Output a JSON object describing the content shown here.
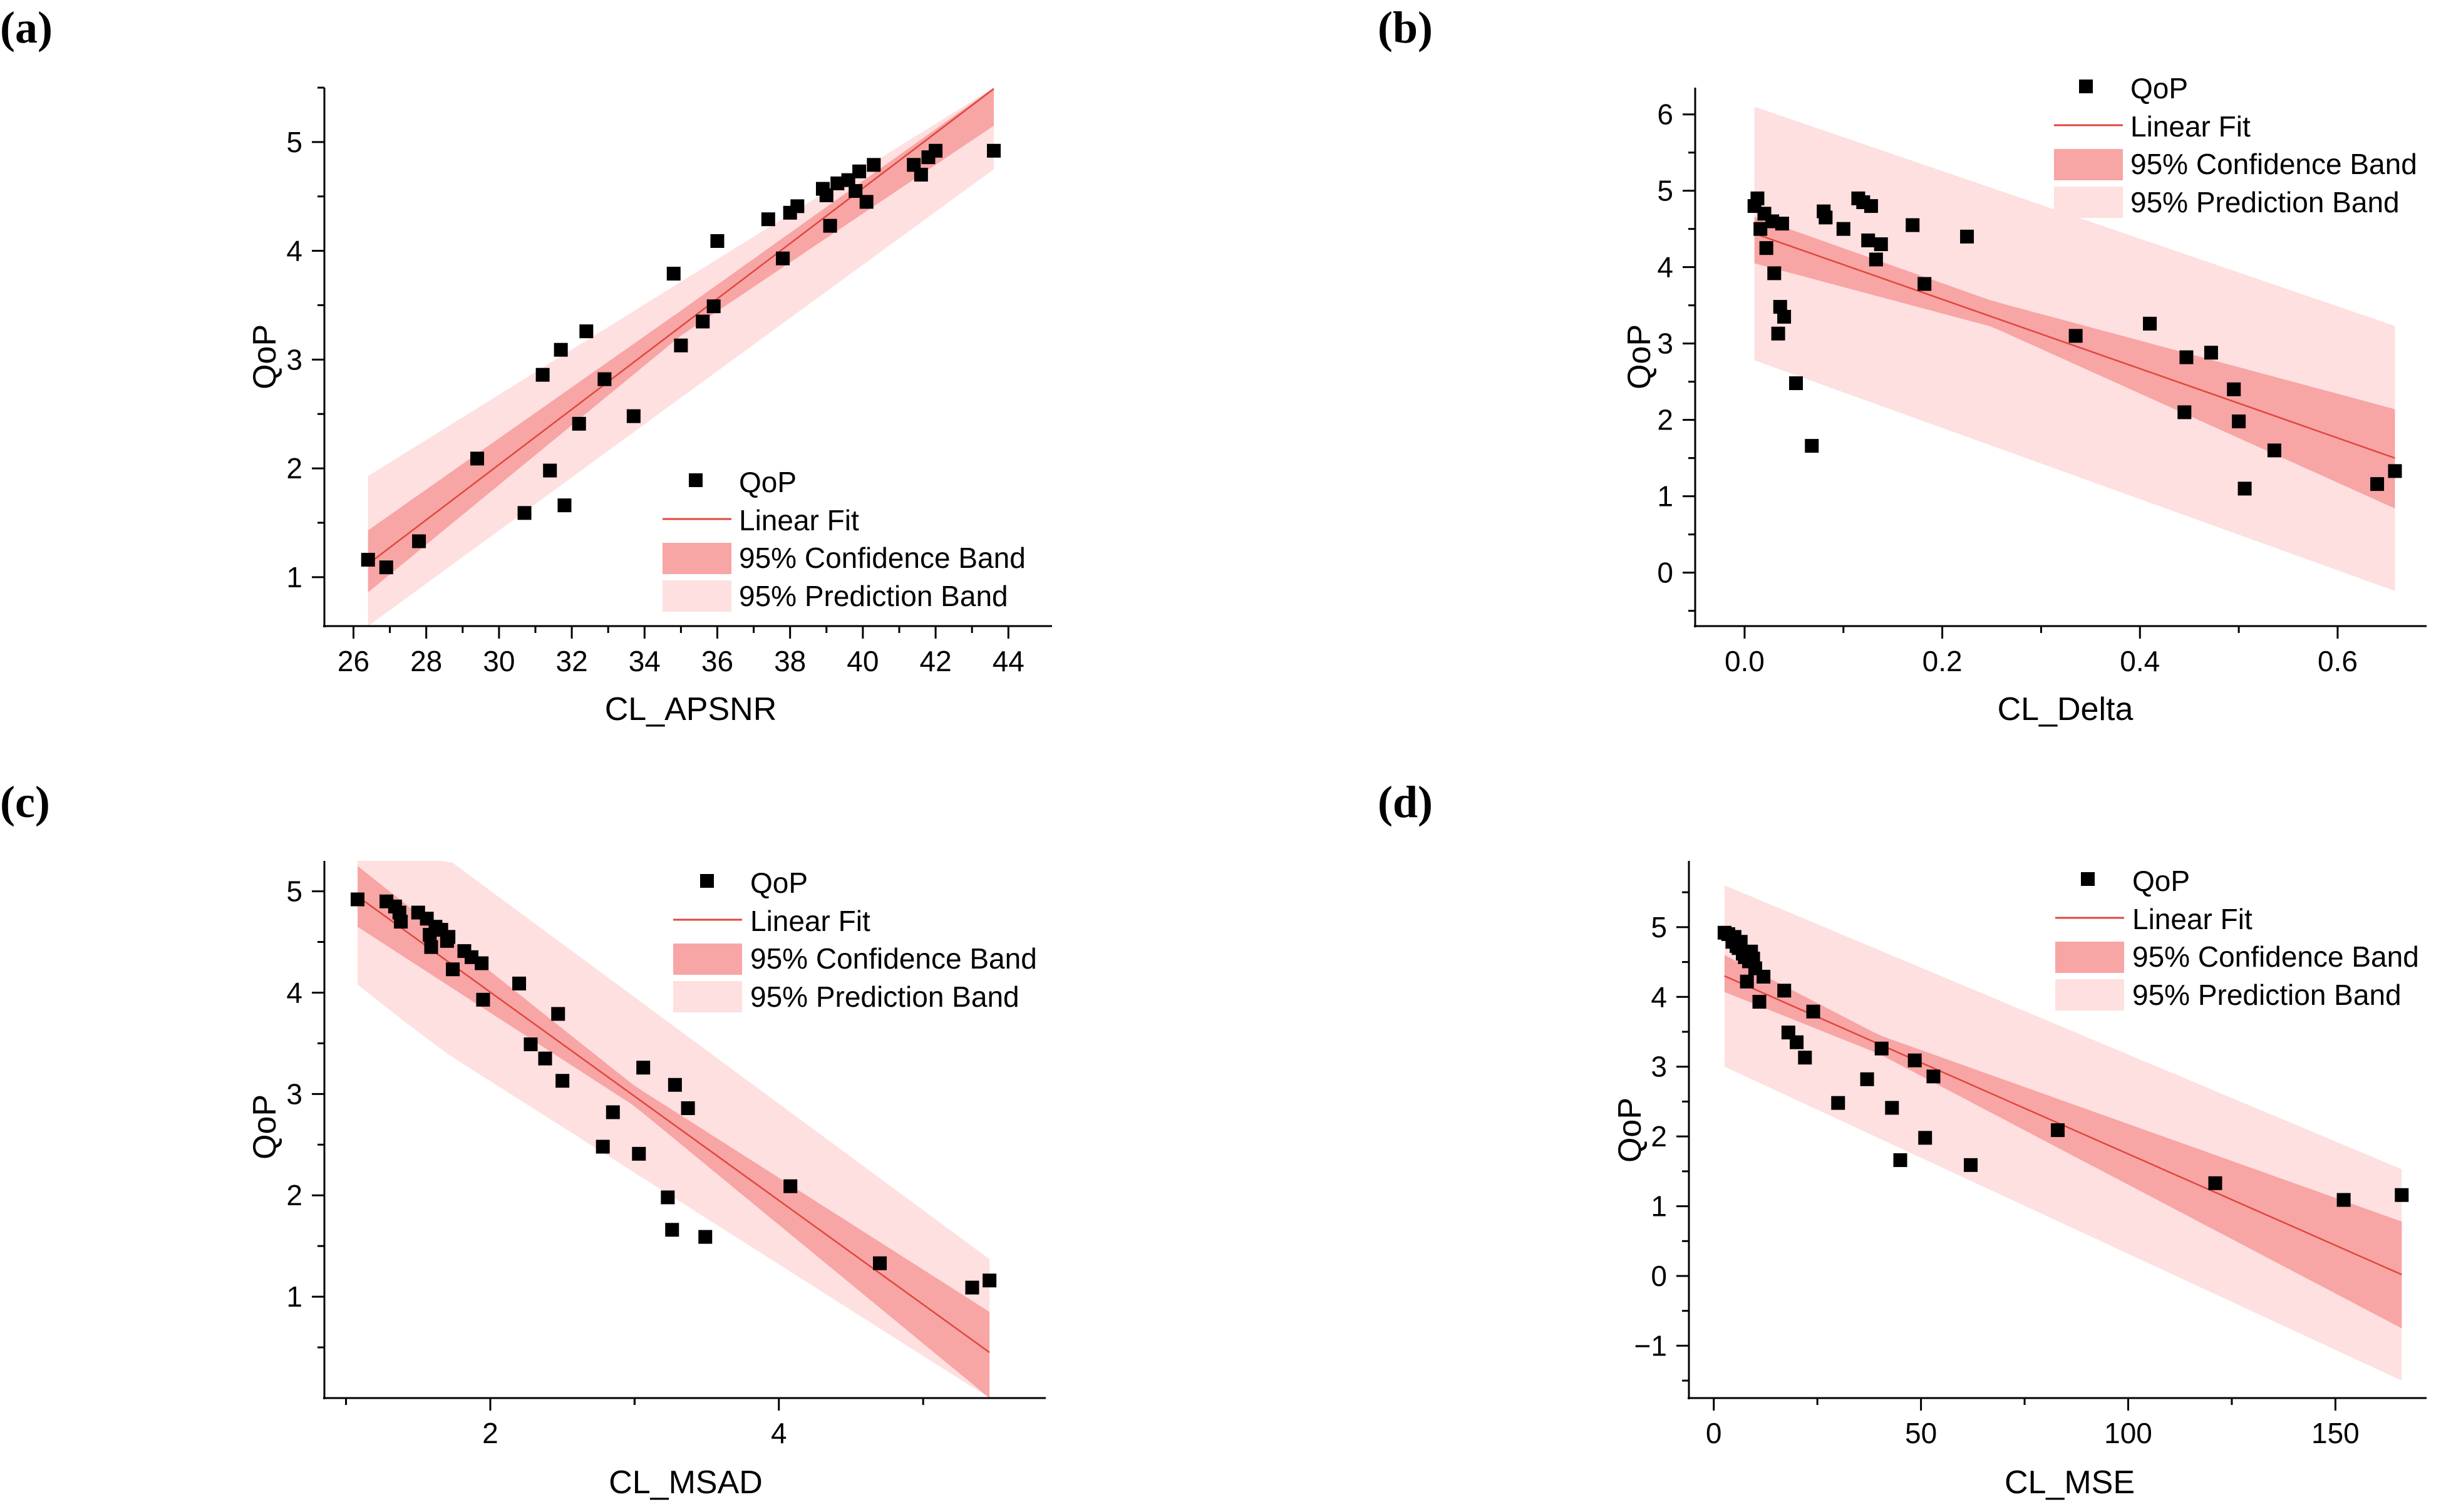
{
  "colors": {
    "axis": "#000000",
    "point": "#000000",
    "fit_line": "#e0473f",
    "confidence_band": "#f8a5a5",
    "prediction_band": "#fde0df"
  },
  "legend_labels": {
    "points": "QoP",
    "fit": "Linear Fit",
    "confidence": "95% Confidence Band",
    "prediction": "95% Prediction Band"
  },
  "chart_data": [
    {
      "panel": "(a)",
      "type": "scatter",
      "title": "",
      "xlabel": "CL_APSNR",
      "ylabel": "QoP",
      "xlim": [
        25.2,
        45.2
      ],
      "ylim": [
        0.55,
        5.5
      ],
      "xticks": [
        26,
        28,
        30,
        32,
        34,
        36,
        38,
        40,
        42,
        44
      ],
      "xtick_labels": [
        "26",
        "28",
        "30",
        "32",
        "34",
        "36",
        "38",
        "40",
        "42",
        "44"
      ],
      "yticks": [
        1,
        2,
        3,
        4,
        5
      ],
      "ytick_labels": [
        "1",
        "2",
        "3",
        "4",
        "5"
      ],
      "legend_position": "bottom-right",
      "points": [
        [
          26.4,
          1.16
        ],
        [
          26.9,
          1.09
        ],
        [
          27.8,
          1.33
        ],
        [
          29.4,
          2.09
        ],
        [
          30.7,
          1.59
        ],
        [
          31.2,
          2.86
        ],
        [
          31.4,
          1.98
        ],
        [
          31.7,
          3.09
        ],
        [
          31.8,
          1.66
        ],
        [
          32.2,
          2.41
        ],
        [
          32.4,
          3.26
        ],
        [
          32.9,
          2.82
        ],
        [
          33.7,
          2.48
        ],
        [
          34.8,
          3.79
        ],
        [
          35.0,
          3.13
        ],
        [
          35.6,
          3.35
        ],
        [
          35.9,
          3.49
        ],
        [
          36.0,
          4.09
        ],
        [
          37.4,
          4.29
        ],
        [
          37.8,
          3.93
        ],
        [
          38.0,
          4.35
        ],
        [
          38.2,
          4.41
        ],
        [
          38.9,
          4.57
        ],
        [
          39.0,
          4.51
        ],
        [
          39.1,
          4.23
        ],
        [
          39.3,
          4.62
        ],
        [
          39.6,
          4.65
        ],
        [
          39.8,
          4.55
        ],
        [
          39.9,
          4.73
        ],
        [
          40.1,
          4.45
        ],
        [
          40.3,
          4.79
        ],
        [
          41.4,
          4.79
        ],
        [
          41.6,
          4.7
        ],
        [
          41.8,
          4.86
        ],
        [
          42.0,
          4.92
        ],
        [
          43.6,
          4.92
        ]
      ],
      "fit": {
        "x_range": [
          26.4,
          43.6
        ],
        "y_start": 1.12,
        "y_end": 5.49
      },
      "confidence_band": {
        "x": [
          26.4,
          35.0,
          43.6
        ],
        "lower": [
          0.86,
          3.22,
          5.15
        ],
        "upper": [
          1.43,
          3.45,
          5.5
        ]
      },
      "prediction_band": {
        "x": [
          26.4,
          43.6
        ],
        "lower": [
          0.55,
          4.75
        ],
        "upper": [
          1.93,
          5.5
        ]
      }
    },
    {
      "panel": "(b)",
      "type": "scatter",
      "title": "",
      "xlabel": "CL_Delta",
      "ylabel": "QoP",
      "xlim": [
        -0.05,
        0.69
      ],
      "ylim": [
        -0.7,
        6.35
      ],
      "xticks": [
        0.0,
        0.2,
        0.4,
        0.6
      ],
      "xtick_labels": [
        "0.0",
        "0.2",
        "0.4",
        "0.6"
      ],
      "yticks": [
        0,
        1,
        2,
        3,
        4,
        5,
        6
      ],
      "ytick_labels": [
        "0",
        "1",
        "2",
        "3",
        "4",
        "5",
        "6"
      ],
      "legend_position": "top-right",
      "points": [
        [
          0.01,
          4.8
        ],
        [
          0.013,
          4.9
        ],
        [
          0.016,
          4.5
        ],
        [
          0.02,
          4.7
        ],
        [
          0.022,
          4.25
        ],
        [
          0.028,
          4.6
        ],
        [
          0.03,
          3.92
        ],
        [
          0.034,
          3.13
        ],
        [
          0.036,
          3.48
        ],
        [
          0.038,
          4.57
        ],
        [
          0.04,
          3.35
        ],
        [
          0.052,
          2.48
        ],
        [
          0.068,
          1.66
        ],
        [
          0.08,
          4.73
        ],
        [
          0.082,
          4.65
        ],
        [
          0.1,
          4.5
        ],
        [
          0.115,
          4.9
        ],
        [
          0.12,
          4.85
        ],
        [
          0.125,
          4.35
        ],
        [
          0.128,
          4.8
        ],
        [
          0.133,
          4.1
        ],
        [
          0.138,
          4.3
        ],
        [
          0.17,
          4.55
        ],
        [
          0.182,
          3.78
        ],
        [
          0.225,
          4.4
        ],
        [
          0.335,
          3.1
        ],
        [
          0.41,
          3.26
        ],
        [
          0.445,
          2.1
        ],
        [
          0.447,
          2.82
        ],
        [
          0.472,
          2.88
        ],
        [
          0.495,
          2.4
        ],
        [
          0.5,
          1.98
        ],
        [
          0.506,
          1.1
        ],
        [
          0.536,
          1.6
        ],
        [
          0.64,
          1.16
        ],
        [
          0.658,
          1.33
        ]
      ],
      "fit": {
        "x_range": [
          0.01,
          0.658
        ],
        "y_start": 4.44,
        "y_end": 1.5
      },
      "confidence_band": {
        "x": [
          0.01,
          0.25,
          0.658
        ],
        "lower": [
          4.05,
          3.22,
          0.84
        ],
        "upper": [
          4.66,
          3.56,
          2.14
        ]
      },
      "prediction_band": {
        "x": [
          0.01,
          0.658
        ],
        "lower": [
          2.78,
          -0.24
        ],
        "upper": [
          6.1,
          3.23
        ]
      }
    },
    {
      "panel": "(c)",
      "type": "scatter",
      "title": "",
      "xlabel": "CL_MSAD",
      "ylabel": "QoP",
      "xlim": [
        0.85,
        5.85
      ],
      "ylim": [
        0.0,
        5.3
      ],
      "xticks": [
        2,
        4
      ],
      "xtick_labels": [
        "2",
        "4"
      ],
      "minor_xticks": [
        1,
        3,
        5
      ],
      "yticks": [
        1,
        2,
        3,
        4,
        5
      ],
      "ytick_labels": [
        "1",
        "2",
        "3",
        "4",
        "5"
      ],
      "legend_position": "top-right",
      "points": [
        [
          1.08,
          4.92
        ],
        [
          1.28,
          4.9
        ],
        [
          1.34,
          4.85
        ],
        [
          1.37,
          4.79
        ],
        [
          1.38,
          4.7
        ],
        [
          1.5,
          4.79
        ],
        [
          1.56,
          4.73
        ],
        [
          1.58,
          4.57
        ],
        [
          1.59,
          4.45
        ],
        [
          1.62,
          4.65
        ],
        [
          1.66,
          4.62
        ],
        [
          1.7,
          4.51
        ],
        [
          1.71,
          4.55
        ],
        [
          1.74,
          4.23
        ],
        [
          1.82,
          4.41
        ],
        [
          1.87,
          4.35
        ],
        [
          1.94,
          4.29
        ],
        [
          1.95,
          3.93
        ],
        [
          2.2,
          4.09
        ],
        [
          2.28,
          3.49
        ],
        [
          2.38,
          3.35
        ],
        [
          2.47,
          3.79
        ],
        [
          2.5,
          3.13
        ],
        [
          2.78,
          2.48
        ],
        [
          2.85,
          2.82
        ],
        [
          3.03,
          2.41
        ],
        [
          3.06,
          3.26
        ],
        [
          3.23,
          1.98
        ],
        [
          3.26,
          1.66
        ],
        [
          3.28,
          3.09
        ],
        [
          3.37,
          2.86
        ],
        [
          3.49,
          1.59
        ],
        [
          4.08,
          2.09
        ],
        [
          4.7,
          1.33
        ],
        [
          5.34,
          1.09
        ],
        [
          5.46,
          1.16
        ]
      ],
      "fit": {
        "x_range": [
          1.08,
          5.46
        ],
        "y_start": 4.95,
        "y_end": 0.45
      },
      "confidence_band": {
        "x": [
          1.08,
          3.0,
          5.46
        ],
        "lower": [
          4.65,
          2.88,
          0.0
        ],
        "upper": [
          5.25,
          3.08,
          0.85
        ]
      },
      "prediction_band": {
        "x": [
          1.08,
          1.4,
          1.72,
          5.46
        ],
        "lower": [
          4.08,
          3.72,
          3.38,
          0.0
        ],
        "upper": [
          5.3,
          5.3,
          5.3,
          1.37
        ]
      }
    },
    {
      "panel": "(d)",
      "type": "scatter",
      "title": "",
      "xlabel": "CL_MSE",
      "ylabel": "QoP",
      "xlim": [
        -6,
        172
      ],
      "ylim": [
        -1.75,
        5.95
      ],
      "xticks": [
        0,
        50,
        100,
        150
      ],
      "xtick_labels": [
        "0",
        "50",
        "100",
        "150"
      ],
      "yticks": [
        -1,
        0,
        1,
        2,
        3,
        4,
        5
      ],
      "ytick_labels": [
        "−1",
        "0",
        "1",
        "2",
        "3",
        "4",
        "5"
      ],
      "legend_position": "top-right",
      "points": [
        [
          2.6,
          4.92
        ],
        [
          3.5,
          4.9
        ],
        [
          4.5,
          4.79
        ],
        [
          5.0,
          4.86
        ],
        [
          5.5,
          4.73
        ],
        [
          6.0,
          4.7
        ],
        [
          6.5,
          4.79
        ],
        [
          7.0,
          4.62
        ],
        [
          7.5,
          4.57
        ],
        [
          8.0,
          4.22
        ],
        [
          8.5,
          4.51
        ],
        [
          9.0,
          4.65
        ],
        [
          9.5,
          4.55
        ],
        [
          10.0,
          4.41
        ],
        [
          11.0,
          3.93
        ],
        [
          12.0,
          4.29
        ],
        [
          17.0,
          4.09
        ],
        [
          18.0,
          3.49
        ],
        [
          20.0,
          3.35
        ],
        [
          22.0,
          3.13
        ],
        [
          24.0,
          3.79
        ],
        [
          30.0,
          2.48
        ],
        [
          37.0,
          2.82
        ],
        [
          40.5,
          3.26
        ],
        [
          43.0,
          2.41
        ],
        [
          45.0,
          1.66
        ],
        [
          48.5,
          3.09
        ],
        [
          51.0,
          1.98
        ],
        [
          53.0,
          2.86
        ],
        [
          62.0,
          1.59
        ],
        [
          83.0,
          2.09
        ],
        [
          121.0,
          1.33
        ],
        [
          152.0,
          1.09
        ],
        [
          166.0,
          1.16
        ]
      ],
      "fit": {
        "x_range": [
          2.6,
          166
        ],
        "y_start": 4.3,
        "y_end": 0.02
      },
      "confidence_band": {
        "x": [
          2.6,
          40.0,
          166
        ],
        "lower": [
          4.07,
          3.18,
          -0.75
        ],
        "upper": [
          4.6,
          3.45,
          0.78
        ]
      },
      "prediction_band": {
        "x": [
          2.6,
          166
        ],
        "lower": [
          3.0,
          -1.5
        ],
        "upper": [
          5.6,
          1.53
        ]
      }
    }
  ]
}
